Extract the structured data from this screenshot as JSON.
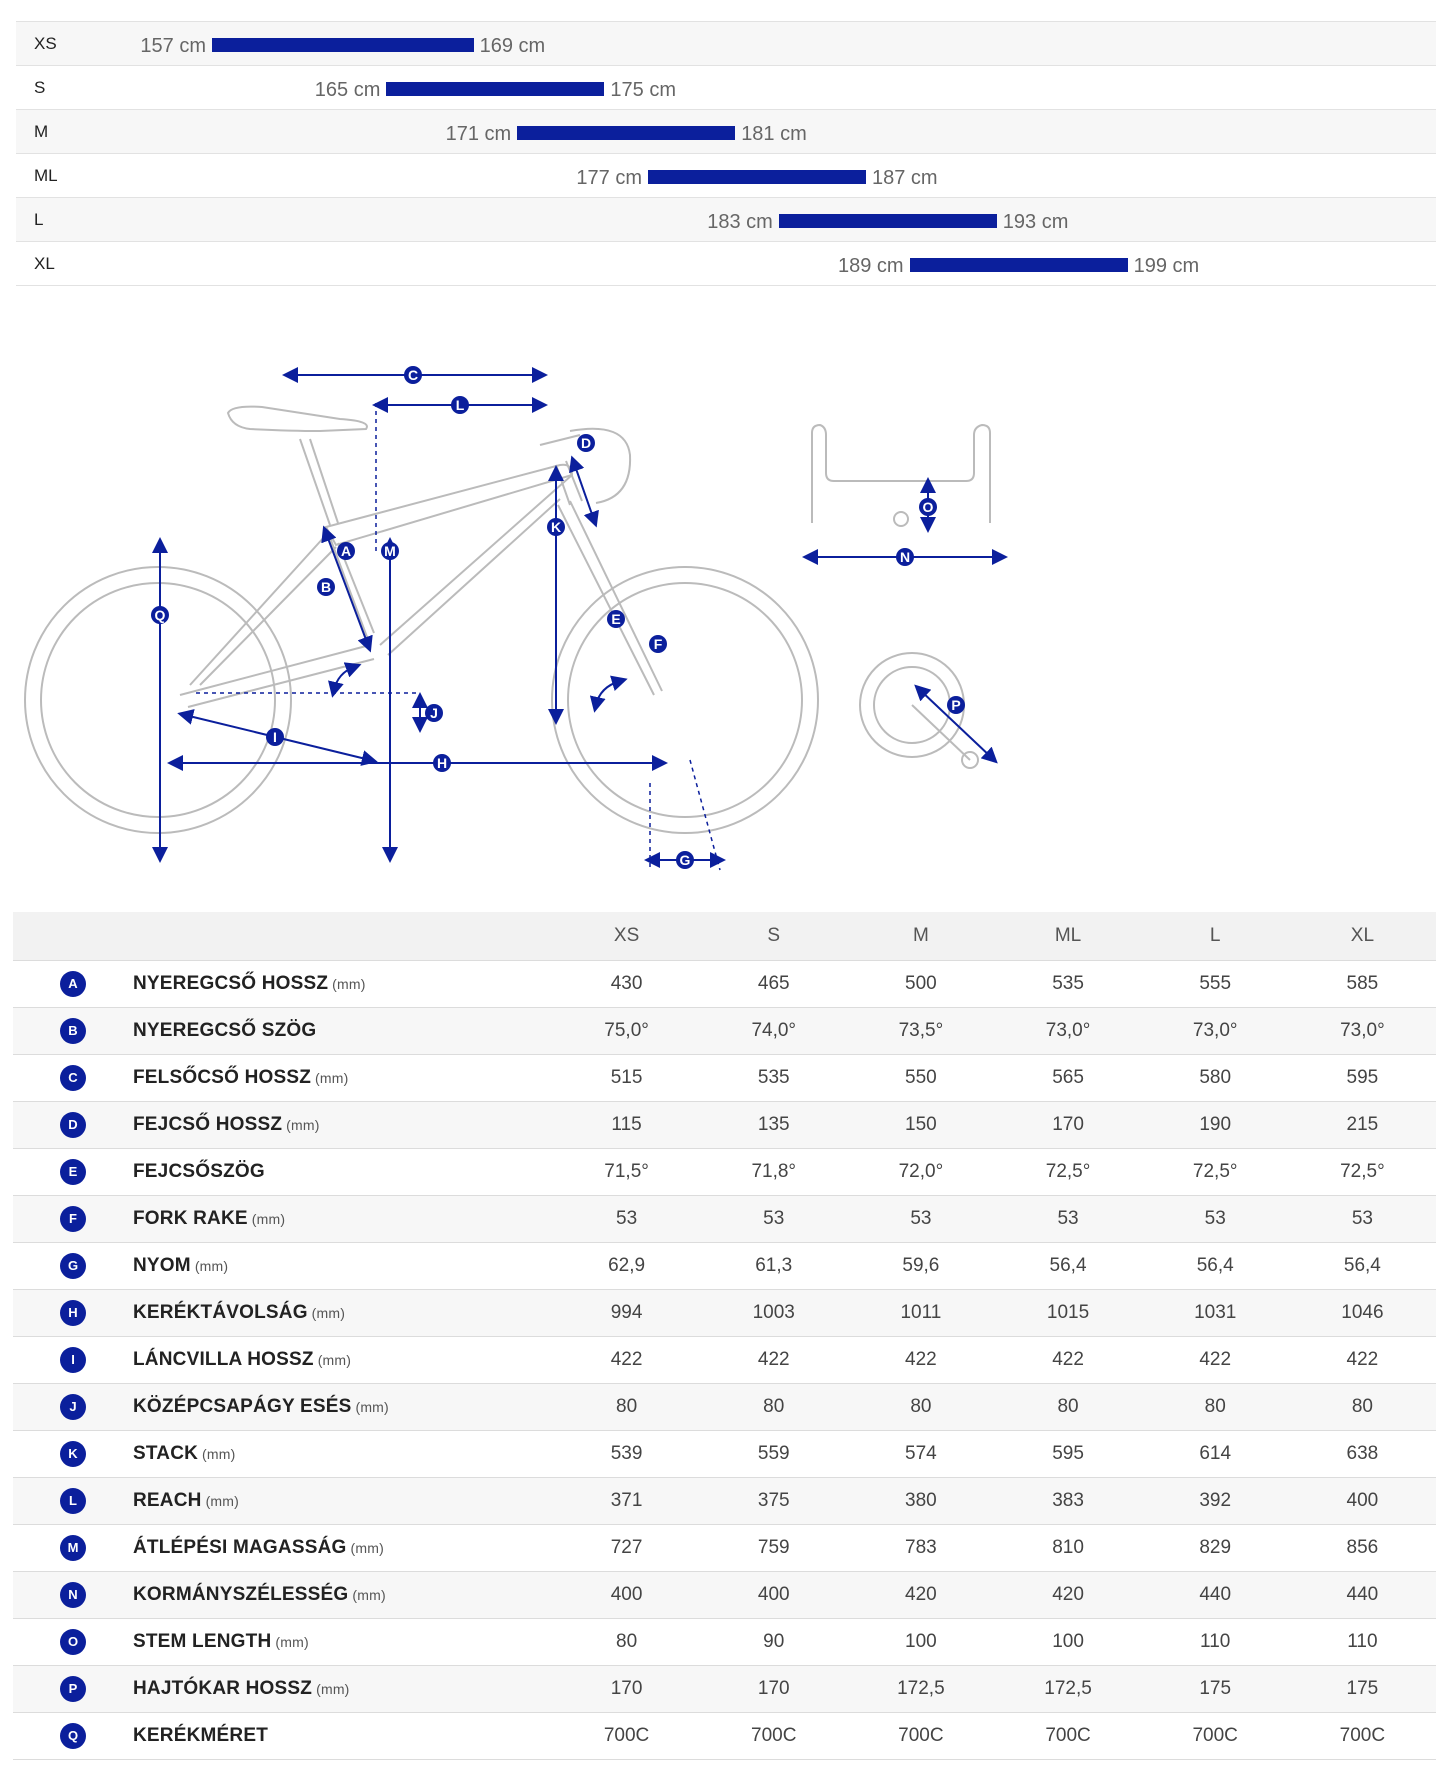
{
  "size_chart": [
    {
      "size": "XS",
      "min": "157 cm",
      "max": "169 cm",
      "min_cm": 157,
      "max_cm": 169
    },
    {
      "size": "S",
      "min": "165 cm",
      "max": "175 cm",
      "min_cm": 165,
      "max_cm": 175
    },
    {
      "size": "M",
      "min": "171 cm",
      "max": "181 cm",
      "min_cm": 171,
      "max_cm": 181
    },
    {
      "size": "ML",
      "min": "177 cm",
      "max": "187 cm",
      "min_cm": 177,
      "max_cm": 187
    },
    {
      "size": "L",
      "min": "183 cm",
      "max": "193 cm",
      "min_cm": 183,
      "max_cm": 193
    },
    {
      "size": "XL",
      "min": "189 cm",
      "max": "199 cm",
      "min_cm": 189,
      "max_cm": 199
    }
  ],
  "diagram": {
    "labels": [
      "A",
      "B",
      "C",
      "D",
      "E",
      "F",
      "G",
      "H",
      "I",
      "J",
      "K",
      "L",
      "M",
      "N",
      "O",
      "P",
      "Q"
    ],
    "line_color": "#bbbbbb",
    "accent_color": "#0b1f9c"
  },
  "table": {
    "sizes": [
      "XS",
      "S",
      "M",
      "ML",
      "L",
      "XL"
    ],
    "rows": [
      {
        "letter": "A",
        "name": "NYEREGCSŐ HOSSZ",
        "unit": "(mm)",
        "values": [
          "430",
          "465",
          "500",
          "535",
          "555",
          "585"
        ]
      },
      {
        "letter": "B",
        "name": "NYEREGCSŐ SZÖG",
        "unit": "",
        "values": [
          "75,0°",
          "74,0°",
          "73,5°",
          "73,0°",
          "73,0°",
          "73,0°"
        ]
      },
      {
        "letter": "C",
        "name": "FELSŐCSŐ HOSSZ",
        "unit": "(mm)",
        "values": [
          "515",
          "535",
          "550",
          "565",
          "580",
          "595"
        ]
      },
      {
        "letter": "D",
        "name": "FEJCSŐ HOSSZ",
        "unit": "(mm)",
        "values": [
          "115",
          "135",
          "150",
          "170",
          "190",
          "215"
        ]
      },
      {
        "letter": "E",
        "name": "FEJCSŐSZÖG",
        "unit": "",
        "values": [
          "71,5°",
          "71,8°",
          "72,0°",
          "72,5°",
          "72,5°",
          "72,5°"
        ]
      },
      {
        "letter": "F",
        "name": "FORK RAKE",
        "unit": "(mm)",
        "values": [
          "53",
          "53",
          "53",
          "53",
          "53",
          "53"
        ]
      },
      {
        "letter": "G",
        "name": "NYOM",
        "unit": "(mm)",
        "values": [
          "62,9",
          "61,3",
          "59,6",
          "56,4",
          "56,4",
          "56,4"
        ]
      },
      {
        "letter": "H",
        "name": "KERÉKTÁVOLSÁG",
        "unit": "(mm)",
        "values": [
          "994",
          "1003",
          "1011",
          "1015",
          "1031",
          "1046"
        ]
      },
      {
        "letter": "I",
        "name": "LÁNCVILLA HOSSZ",
        "unit": "(mm)",
        "values": [
          "422",
          "422",
          "422",
          "422",
          "422",
          "422"
        ]
      },
      {
        "letter": "J",
        "name": "KÖZÉPCSAPÁGY ESÉS",
        "unit": "(mm)",
        "values": [
          "80",
          "80",
          "80",
          "80",
          "80",
          "80"
        ]
      },
      {
        "letter": "K",
        "name": "STACK",
        "unit": "(mm)",
        "values": [
          "539",
          "559",
          "574",
          "595",
          "614",
          "638"
        ]
      },
      {
        "letter": "L",
        "name": "REACH",
        "unit": "(mm)",
        "values": [
          "371",
          "375",
          "380",
          "383",
          "392",
          "400"
        ]
      },
      {
        "letter": "M",
        "name": "ÁTLÉPÉSI MAGASSÁG",
        "unit": "(mm)",
        "values": [
          "727",
          "759",
          "783",
          "810",
          "829",
          "856"
        ]
      },
      {
        "letter": "N",
        "name": "KORMÁNYSZÉLESSÉG",
        "unit": "(mm)",
        "values": [
          "400",
          "400",
          "420",
          "420",
          "440",
          "440"
        ]
      },
      {
        "letter": "O",
        "name": "STEM LENGTH",
        "unit": "(mm)",
        "values": [
          "80",
          "90",
          "100",
          "100",
          "110",
          "110"
        ]
      },
      {
        "letter": "P",
        "name": "HAJTÓKAR HOSSZ",
        "unit": "(mm)",
        "values": [
          "170",
          "170",
          "172,5",
          "172,5",
          "175",
          "175"
        ]
      },
      {
        "letter": "Q",
        "name": "KERÉKMÉRET",
        "unit": "",
        "values": [
          "700C",
          "700C",
          "700C",
          "700C",
          "700C",
          "700C"
        ]
      }
    ]
  }
}
